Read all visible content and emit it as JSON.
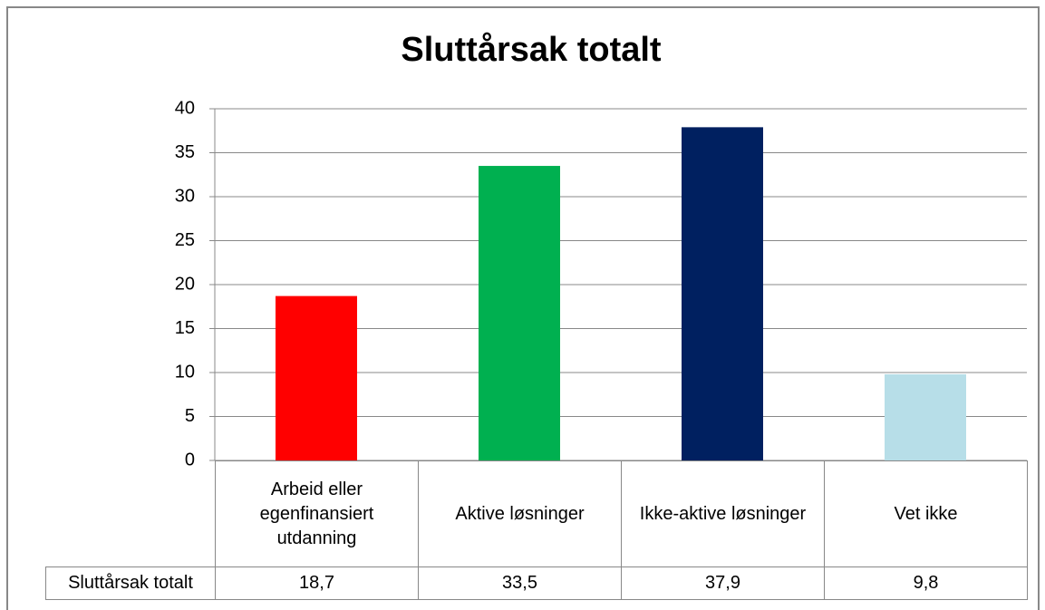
{
  "chart_data": {
    "type": "bar",
    "title": "Sluttårsak totalt",
    "categories": [
      "Arbeid eller egenfinansiert utdanning",
      "Aktive løsninger",
      "Ikke-aktive løsninger",
      "Vet ikke"
    ],
    "series": [
      {
        "name": "Sluttårsak totalt",
        "values": [
          18.7,
          33.5,
          37.9,
          9.8
        ],
        "value_labels": [
          "18,7",
          "33,5",
          "37,9",
          "9,8"
        ],
        "colors": [
          "#ff0000",
          "#00b050",
          "#002060",
          "#b7dee8"
        ]
      }
    ],
    "ylim": [
      0,
      40
    ],
    "yticks": [
      0,
      5,
      10,
      15,
      20,
      25,
      30,
      35,
      40
    ],
    "grid": true
  }
}
